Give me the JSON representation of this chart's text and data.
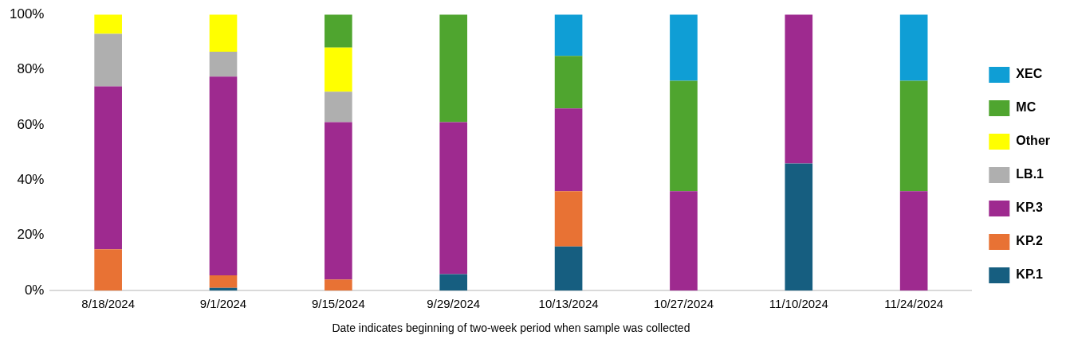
{
  "chart_data": {
    "type": "bar",
    "stacked": true,
    "xlabel": "Date indicates beginning of two-week period when sample was collected",
    "categories": [
      "8/18/2024",
      "9/1/2024",
      "9/15/2024",
      "9/29/2024",
      "10/13/2024",
      "10/27/2024",
      "11/10/2024",
      "11/24/2024"
    ],
    "ylim": [
      0,
      100
    ],
    "yticks": [
      {
        "value": 0,
        "label": "0%"
      },
      {
        "value": 20,
        "label": "20%"
      },
      {
        "value": 40,
        "label": "40%"
      },
      {
        "value": 60,
        "label": "60%"
      },
      {
        "value": 80,
        "label": "80%"
      },
      {
        "value": 100,
        "label": "100%"
      }
    ],
    "legend": "right",
    "series": [
      {
        "name": "KP.1",
        "color": "#165e80",
        "values": [
          0,
          1,
          0,
          6,
          16,
          0,
          46,
          0
        ]
      },
      {
        "name": "KP.2",
        "color": "#e87234",
        "values": [
          15,
          4.5,
          4,
          0,
          20,
          0,
          0,
          0
        ]
      },
      {
        "name": "KP.3",
        "color": "#9e2a8f",
        "values": [
          59,
          72,
          57,
          55,
          30,
          36,
          54,
          36
        ]
      },
      {
        "name": "LB.1",
        "color": "#afafaf",
        "values": [
          19,
          9,
          11,
          0,
          0,
          0,
          0,
          0
        ]
      },
      {
        "name": "Other",
        "color": "#ffff00",
        "values": [
          7,
          13.5,
          16,
          0,
          0,
          0,
          0,
          0
        ]
      },
      {
        "name": "MC",
        "color": "#4fa52f",
        "values": [
          0,
          0,
          12,
          39,
          19,
          40,
          0,
          40
        ]
      },
      {
        "name": "XEC",
        "color": "#0f9ed5",
        "values": [
          0,
          0,
          0,
          0,
          15,
          24,
          0,
          24
        ]
      }
    ]
  }
}
